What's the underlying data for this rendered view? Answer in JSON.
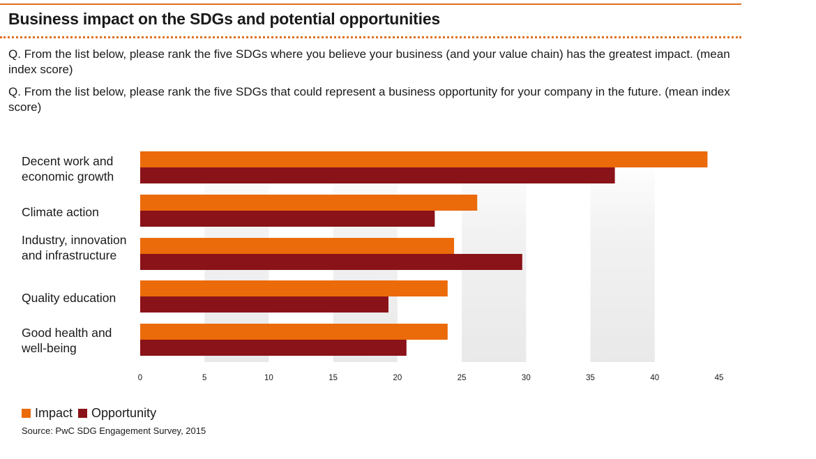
{
  "header": {
    "title": "Business impact on the SDGs and potential opportunities",
    "question_1": "Q. From the list below, please rank the five SDGs where you believe your business (and your value chain) has the greatest impact. (mean index score)",
    "question_2": "Q. From the list below, please rank the five SDGs that could represent a business opportunity for your company in the future. (mean index score)"
  },
  "colors": {
    "accent_rule": "#e0701f",
    "impact": "#eb6a0a",
    "opportunity": "#8a1219"
  },
  "chart_data": {
    "type": "bar",
    "orientation": "horizontal",
    "categories": [
      "Decent work and economic growth",
      "Climate action",
      "Industry, innovation and infrastructure",
      "Quality education",
      "Good health and well-being"
    ],
    "series": [
      {
        "name": "Impact",
        "color": "#eb6a0a",
        "values": [
          44.1,
          26.2,
          24.4,
          23.9,
          23.9
        ]
      },
      {
        "name": "Opportunity",
        "color": "#8a1219",
        "values": [
          36.9,
          22.9,
          29.7,
          19.3,
          20.7
        ]
      }
    ],
    "x_ticks": [
      "0",
      "5",
      "10",
      "15",
      "20",
      "25",
      "30",
      "35",
      "40",
      "45"
    ],
    "xlim": [
      0,
      45
    ],
    "xlabel": "",
    "ylabel": "",
    "grid": "alternating shaded vertical bands",
    "legend_position": "bottom-left"
  },
  "legend": {
    "impact_label": "Impact",
    "opportunity_label": "Opportunity"
  },
  "source": "Source: PwC SDG Engagement Survey, 2015"
}
